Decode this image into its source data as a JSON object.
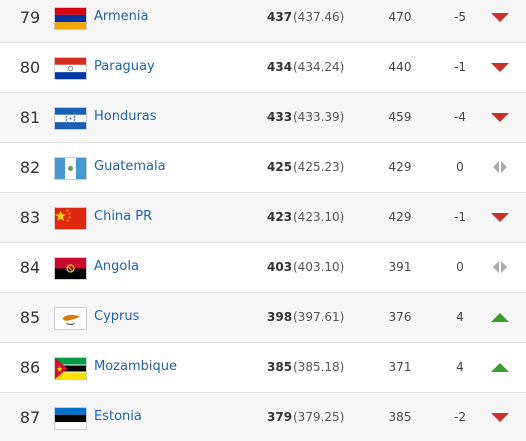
{
  "table": {
    "rows": [
      {
        "rank": 79,
        "country": "Armenia",
        "points": 437,
        "points_exact": "(437.46)",
        "previous_points": 470,
        "change": -5
      },
      {
        "rank": 80,
        "country": "Paraguay",
        "points": 434,
        "points_exact": "(434.24)",
        "previous_points": 440,
        "change": -1
      },
      {
        "rank": 81,
        "country": "Honduras",
        "points": 433,
        "points_exact": "(433.39)",
        "previous_points": 459,
        "change": -4
      },
      {
        "rank": 82,
        "country": "Guatemala",
        "points": 425,
        "points_exact": "(425.23)",
        "previous_points": 429,
        "change": 0
      },
      {
        "rank": 83,
        "country": "China PR",
        "points": 423,
        "points_exact": "(423.10)",
        "previous_points": 429,
        "change": -1
      },
      {
        "rank": 84,
        "country": "Angola",
        "points": 403,
        "points_exact": "(403.10)",
        "previous_points": 391,
        "change": 0
      },
      {
        "rank": 85,
        "country": "Cyprus",
        "points": 398,
        "points_exact": "(397.61)",
        "previous_points": 376,
        "change": 4
      },
      {
        "rank": 86,
        "country": "Mozambique",
        "points": 385,
        "points_exact": "(385.18)",
        "previous_points": 371,
        "change": 4
      },
      {
        "rank": 87,
        "country": "Estonia",
        "points": 379,
        "points_exact": "(379.25)",
        "previous_points": 385,
        "change": -2
      }
    ]
  }
}
